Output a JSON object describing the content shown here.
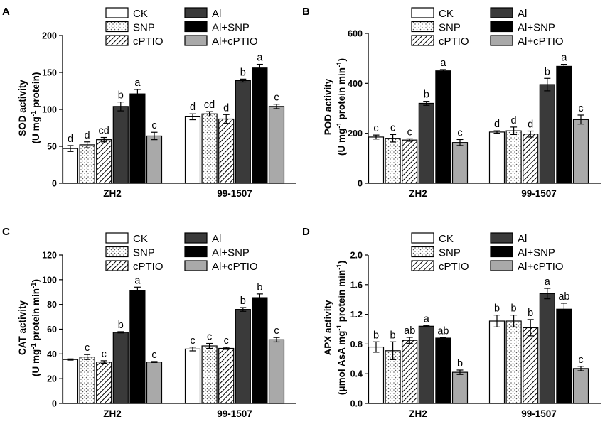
{
  "patterns": {
    "CK": "white",
    "SNP": "dots",
    "cPTIO": "hatch",
    "Al": "dark",
    "Al+SNP": "black",
    "Al+cPTIO": "gray"
  },
  "colors": {
    "dark": "#3a3a3a",
    "black": "#000000",
    "gray": "#a9a9a9",
    "white": "#ffffff",
    "axis": "#000000"
  },
  "chart_data": [
    {
      "id": "A",
      "panel_label": "A",
      "type": "bar",
      "ylabel_line1": "SOD activity",
      "ylabel_line2": [
        "(U mg",
        "-1",
        " protein)"
      ],
      "ylim": [
        0,
        200
      ],
      "yticks": [
        "0",
        "50",
        "100",
        "150",
        "200"
      ],
      "categories": [
        "ZH2",
        "99-1507"
      ],
      "series": [
        {
          "name": "CK",
          "values": [
            47,
            90
          ],
          "errors": [
            4,
            4
          ],
          "labels": [
            "d",
            "d"
          ]
        },
        {
          "name": "SNP",
          "values": [
            52,
            94
          ],
          "errors": [
            4,
            3
          ],
          "labels": [
            "d",
            "cd"
          ]
        },
        {
          "name": "cPTIO",
          "values": [
            59,
            87
          ],
          "errors": [
            3,
            6
          ],
          "labels": [
            "cd",
            "d"
          ]
        },
        {
          "name": "Al",
          "values": [
            104,
            139
          ],
          "errors": [
            6,
            2
          ],
          "labels": [
            "b",
            "b"
          ]
        },
        {
          "name": "Al+SNP",
          "values": [
            121,
            156
          ],
          "errors": [
            6,
            5
          ],
          "labels": [
            "a",
            "a"
          ]
        },
        {
          "name": "Al+cPTIO",
          "values": [
            64,
            104
          ],
          "errors": [
            5,
            3
          ],
          "labels": [
            "c",
            "c"
          ]
        }
      ]
    },
    {
      "id": "B",
      "panel_label": "B",
      "type": "bar",
      "ylabel_line1": "POD activity",
      "ylabel_line2": [
        "(U mg",
        "-1",
        " protein min",
        "-1",
        ")"
      ],
      "ylim": [
        0,
        600
      ],
      "yticks": [
        "0",
        "200",
        "400",
        "600"
      ],
      "categories": [
        "ZH2",
        "99-1507"
      ],
      "series": [
        {
          "name": "CK",
          "values": [
            185,
            205
          ],
          "errors": [
            8,
            5
          ],
          "labels": [
            "c",
            "d"
          ]
        },
        {
          "name": "SNP",
          "values": [
            180,
            210
          ],
          "errors": [
            15,
            15
          ],
          "labels": [
            "c",
            "d"
          ]
        },
        {
          "name": "cPTIO",
          "values": [
            173,
            197
          ],
          "errors": [
            5,
            12
          ],
          "labels": [
            "c",
            "d"
          ]
        },
        {
          "name": "Al",
          "values": [
            320,
            395
          ],
          "errors": [
            8,
            25
          ],
          "labels": [
            "b",
            "b"
          ]
        },
        {
          "name": "Al+SNP",
          "values": [
            450,
            468
          ],
          "errors": [
            5,
            8
          ],
          "labels": [
            "a",
            "a"
          ]
        },
        {
          "name": "Al+cPTIO",
          "values": [
            163,
            255
          ],
          "errors": [
            12,
            18
          ],
          "labels": [
            "c",
            "c"
          ]
        }
      ]
    },
    {
      "id": "C",
      "panel_label": "C",
      "type": "bar",
      "ylabel_line1": "CAT activity",
      "ylabel_line2": [
        "(U mg",
        "-1",
        " protein min",
        "-1",
        ")"
      ],
      "ylim": [
        0,
        120
      ],
      "yticks": [
        "0",
        "20",
        "40",
        "60",
        "80",
        "100",
        "120"
      ],
      "categories": [
        "ZH2",
        "99-1507"
      ],
      "series": [
        {
          "name": "CK",
          "values": [
            35.5,
            44
          ],
          "errors": [
            0.5,
            1.5
          ],
          "labels": [
            "",
            "c"
          ]
        },
        {
          "name": "SNP",
          "values": [
            37.5,
            46.5
          ],
          "errors": [
            2,
            2
          ],
          "labels": [
            "c",
            "c"
          ]
        },
        {
          "name": "cPTIO",
          "values": [
            33.5,
            44.5
          ],
          "errors": [
            1,
            0.8
          ],
          "labels": [
            "c",
            "c"
          ]
        },
        {
          "name": "Al",
          "values": [
            57.5,
            76
          ],
          "errors": [
            0.5,
            1.5
          ],
          "labels": [
            "b",
            "b"
          ]
        },
        {
          "name": "Al+SNP",
          "values": [
            91,
            85.5
          ],
          "errors": [
            3,
            3
          ],
          "labels": [
            "a",
            "b"
          ]
        },
        {
          "name": "Al+cPTIO",
          "values": [
            33.5,
            51.5
          ],
          "errors": [
            0.4,
            1.8
          ],
          "labels": [
            "c",
            "c"
          ]
        }
      ]
    },
    {
      "id": "D",
      "panel_label": "D",
      "type": "bar",
      "ylabel_line1": "APX activity",
      "ylabel_line2": [
        "(μmol AsA mg",
        "-1",
        " protein min",
        "-1",
        ")"
      ],
      "ylim": [
        0,
        2.0
      ],
      "yticks": [
        "0.0",
        "0.4",
        "0.8",
        "1.2",
        "1.6",
        "2.0"
      ],
      "categories": [
        "ZH2",
        "99-1507"
      ],
      "series": [
        {
          "name": "CK",
          "values": [
            0.76,
            1.11
          ],
          "errors": [
            0.07,
            0.08
          ],
          "labels": [
            "b",
            "b"
          ]
        },
        {
          "name": "SNP",
          "values": [
            0.71,
            1.11
          ],
          "errors": [
            0.12,
            0.08
          ],
          "labels": [
            "b",
            "b"
          ]
        },
        {
          "name": "cPTIO",
          "values": [
            0.85,
            1.02
          ],
          "errors": [
            0.04,
            0.11
          ],
          "labels": [
            "ab",
            "b"
          ]
        },
        {
          "name": "Al",
          "values": [
            1.04,
            1.48
          ],
          "errors": [
            0.01,
            0.07
          ],
          "labels": [
            "a",
            "a"
          ]
        },
        {
          "name": "Al+SNP",
          "values": [
            0.88,
            1.27
          ],
          "errors": [
            0.005,
            0.08
          ],
          "labels": [
            "ab",
            "ab"
          ]
        },
        {
          "name": "Al+cPTIO",
          "values": [
            0.42,
            0.47
          ],
          "errors": [
            0.03,
            0.03
          ],
          "labels": [
            "b",
            "c"
          ]
        }
      ]
    }
  ]
}
